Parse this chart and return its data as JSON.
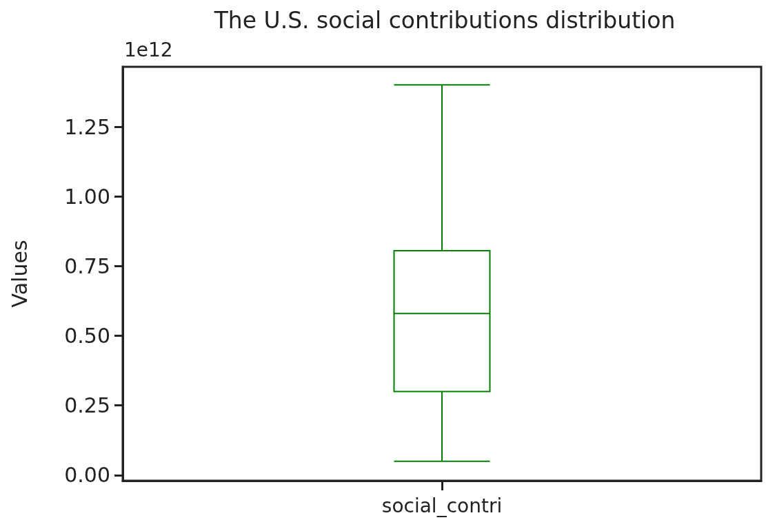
{
  "chart_data": {
    "type": "box",
    "title": "The U.S. social contributions distribution",
    "ylabel": "Values",
    "categories": [
      "social_contri"
    ],
    "series": [
      {
        "color": "#008000",
        "boxes": [
          {
            "low": 0.05,
            "q1": 0.3,
            "median": 0.58,
            "q3": 0.805,
            "high": 1.4
          }
        ]
      }
    ],
    "ylim": [
      -0.02,
      1.465
    ],
    "yticks": [
      {
        "value": 0,
        "label": "0.00"
      },
      {
        "value": 0.25,
        "label": "0.25"
      },
      {
        "value": 0.5,
        "label": "0.50"
      },
      {
        "value": 0.75,
        "label": "0.75"
      },
      {
        "value": 1.0,
        "label": "1.00"
      },
      {
        "value": 1.25,
        "label": "1.25"
      }
    ],
    "annotations": [
      "1e12"
    ]
  }
}
